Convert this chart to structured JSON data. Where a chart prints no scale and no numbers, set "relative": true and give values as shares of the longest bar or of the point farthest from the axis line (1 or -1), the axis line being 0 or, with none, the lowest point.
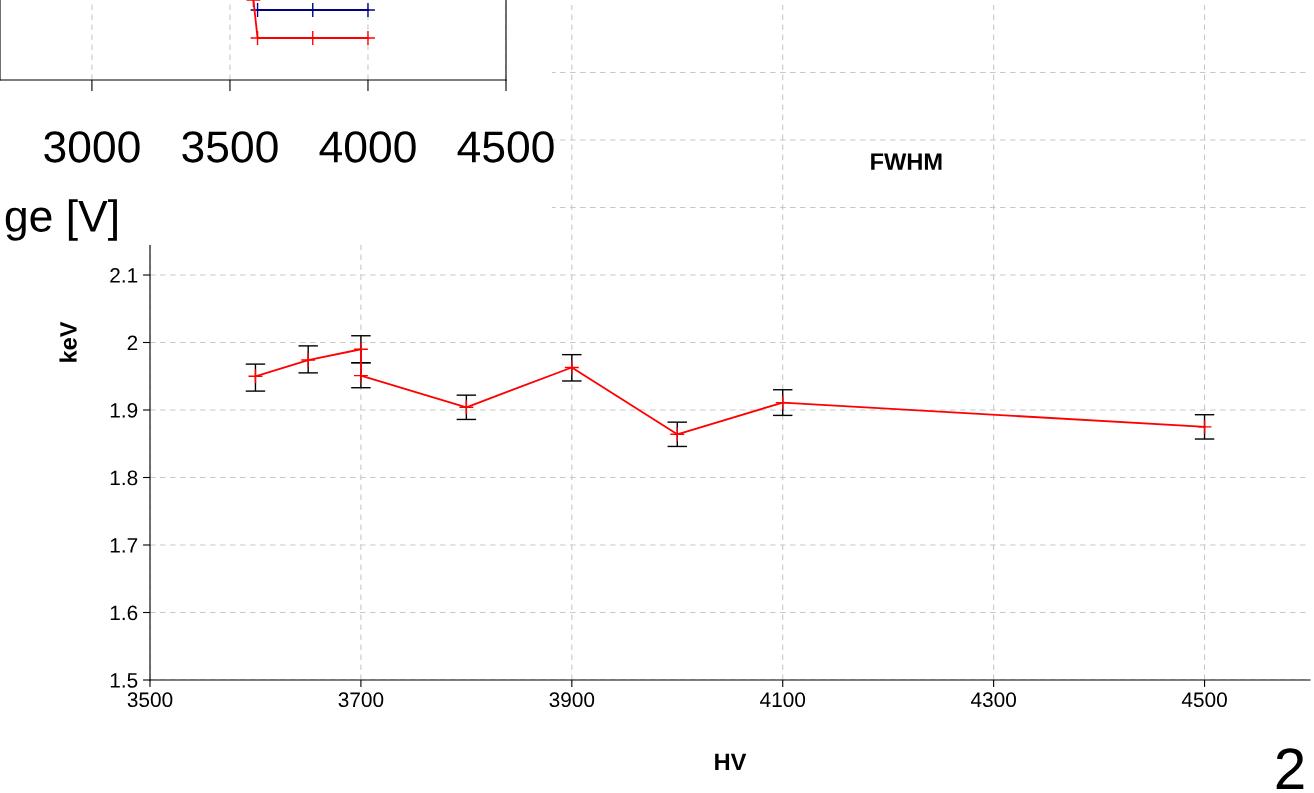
{
  "chart_data": [
    {
      "type": "line",
      "title": "FWHM",
      "xlabel": "HV",
      "ylabel": "keV",
      "x": [
        3600,
        3650,
        3700,
        3700,
        3800,
        3900,
        4000,
        4100,
        4500
      ],
      "series": [
        {
          "color": "#ff0000",
          "values": [
            1.95,
            1.974,
            1.99,
            1.951,
            1.904,
            1.963,
            1.864,
            1.911,
            1.875
          ],
          "errors": [
            [
              1.928,
              1.968
            ],
            [
              1.955,
              1.995
            ],
            [
              1.97,
              2.01
            ],
            [
              1.933,
              1.97
            ],
            [
              1.886,
              1.922
            ],
            [
              1.943,
              1.982
            ],
            [
              1.846,
              1.882
            ],
            [
              1.892,
              1.93
            ],
            [
              1.857,
              1.893
            ]
          ]
        }
      ],
      "xlim": [
        3500,
        4600
      ],
      "xticks": [
        3500,
        3700,
        3900,
        4100,
        4300,
        4500
      ],
      "ylim": [
        1.5,
        2.5
      ],
      "yticks": [
        1.5,
        1.6,
        1.7,
        1.8,
        1.9,
        2,
        2.1,
        {
          "value": 2.2,
          "label": null
        },
        {
          "value": 2.3,
          "label": null
        },
        {
          "value": 2.4,
          "label": null
        }
      ],
      "grid": true,
      "marker": "cross",
      "line_style": "solid",
      "annotations": [
        "2"
      ]
    },
    {
      "type": "line",
      "relative": true,
      "xlabel": "ge [V]",
      "series": [
        {
          "color": "#000080",
          "x": [
            3600,
            3800,
            4000
          ],
          "values": [
            0.875,
            0.875,
            0.875
          ]
        },
        {
          "color": "#ff0000",
          "x": [
            3585,
            3600,
            3800,
            4000
          ],
          "values": [
            1,
            0.525,
            0.525,
            0.525
          ]
        }
      ],
      "xlim": [
        2667,
        4500
      ],
      "xticks": [
        3000,
        3500,
        4000,
        4500
      ],
      "grid": "x",
      "marker": "cross",
      "line_style": "solid"
    }
  ]
}
